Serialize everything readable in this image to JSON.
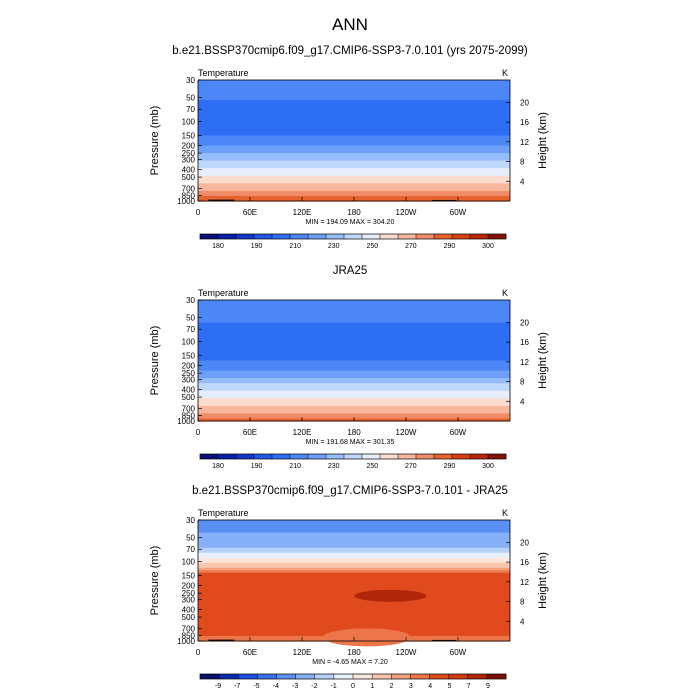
{
  "figure": {
    "title": "ANN"
  },
  "chart_data": [
    {
      "type": "heatmap",
      "title": "b.e21.BSSP370cmip6.f09_g17.CMIP6-SSP3-7.0.101 (yrs 2075-2099)",
      "variable": "Temperature",
      "units": "K",
      "ylabel": "Pressure (mb)",
      "ylabel_right": "Height (km)",
      "x_ticks": [
        "0",
        "60E",
        "120E",
        "180",
        "120W",
        "60W"
      ],
      "y_ticks": [
        "30",
        "50",
        "70",
        "100",
        "150",
        "200",
        "250",
        "300",
        "400",
        "500",
        "700",
        "850",
        "1000"
      ],
      "height_ticks": [
        "20",
        "16",
        "12",
        "8",
        "4"
      ],
      "stats": "MIN = 194.09  MAX = 304.20",
      "colorbar_labels": [
        "180",
        "190",
        "210",
        "230",
        "250",
        "270",
        "290",
        "300"
      ],
      "levels": [
        175,
        180,
        185,
        190,
        200,
        210,
        220,
        230,
        240,
        250,
        260,
        270,
        280,
        290,
        295,
        300,
        305
      ],
      "profile": [
        {
          "p": 30,
          "v": 215
        },
        {
          "p": 50,
          "v": 211
        },
        {
          "p": 70,
          "v": 207
        },
        {
          "p": 100,
          "v": 204
        },
        {
          "p": 150,
          "v": 210
        },
        {
          "p": 200,
          "v": 220
        },
        {
          "p": 250,
          "v": 229
        },
        {
          "p": 300,
          "v": 238
        },
        {
          "p": 400,
          "v": 252
        },
        {
          "p": 500,
          "v": 263
        },
        {
          "p": 700,
          "v": 278
        },
        {
          "p": 850,
          "v": 288
        },
        {
          "p": 1000,
          "v": 296
        }
      ],
      "min": 194.09,
      "max": 304.2
    },
    {
      "type": "heatmap",
      "title": "JRA25",
      "variable": "Temperature",
      "units": "K",
      "ylabel": "Pressure (mb)",
      "ylabel_right": "Height (km)",
      "x_ticks": [
        "0",
        "60E",
        "120E",
        "180",
        "120W",
        "60W"
      ],
      "y_ticks": [
        "30",
        "50",
        "70",
        "100",
        "150",
        "200",
        "250",
        "300",
        "400",
        "500",
        "700",
        "850",
        "1000"
      ],
      "height_ticks": [
        "20",
        "16",
        "12",
        "8",
        "4"
      ],
      "stats": "MIN = 191.68  MAX = 301.35",
      "colorbar_labels": [
        "180",
        "190",
        "210",
        "230",
        "250",
        "270",
        "290",
        "300"
      ],
      "levels": [
        175,
        180,
        185,
        190,
        200,
        210,
        220,
        230,
        240,
        250,
        260,
        270,
        280,
        290,
        295,
        300,
        305
      ],
      "profile": [
        {
          "p": 30,
          "v": 219
        },
        {
          "p": 50,
          "v": 212
        },
        {
          "p": 70,
          "v": 207
        },
        {
          "p": 100,
          "v": 203
        },
        {
          "p": 150,
          "v": 207
        },
        {
          "p": 200,
          "v": 215
        },
        {
          "p": 250,
          "v": 224
        },
        {
          "p": 300,
          "v": 233
        },
        {
          "p": 400,
          "v": 248
        },
        {
          "p": 500,
          "v": 259
        },
        {
          "p": 700,
          "v": 274
        },
        {
          "p": 850,
          "v": 284
        },
        {
          "p": 1000,
          "v": 292
        }
      ],
      "min": 191.68,
      "max": 301.35
    },
    {
      "type": "heatmap",
      "title": "b.e21.BSSP370cmip6.f09_g17.CMIP6-SSP3-7.0.101 - JRA25",
      "variable": "Temperature",
      "units": "K",
      "ylabel": "Pressure (mb)",
      "ylabel_right": "Height (km)",
      "x_ticks": [
        "0",
        "60E",
        "120E",
        "180",
        "120W",
        "60W"
      ],
      "y_ticks": [
        "30",
        "50",
        "70",
        "100",
        "150",
        "200",
        "250",
        "300",
        "400",
        "500",
        "700",
        "850",
        "1000"
      ],
      "height_ticks": [
        "20",
        "16",
        "12",
        "8",
        "4"
      ],
      "stats": "MIN =  -4.65  MAX =   7.20",
      "colorbar_labels": [
        "-9",
        "-7",
        "-5",
        "-4",
        "-3",
        "-2",
        "-1",
        "0",
        "1",
        "2",
        "3",
        "4",
        "5",
        "7",
        "9"
      ],
      "levels": [
        -10,
        -9,
        -7,
        -5,
        -4,
        -3,
        -2,
        -1,
        0,
        1,
        2,
        3,
        4,
        5,
        7,
        9,
        10
      ],
      "profile": [
        {
          "p": 30,
          "v": -3.5
        },
        {
          "p": 50,
          "v": -2.8
        },
        {
          "p": 70,
          "v": -1.8
        },
        {
          "p": 100,
          "v": 0.5
        },
        {
          "p": 150,
          "v": 4.6
        },
        {
          "p": 200,
          "v": 4.8
        },
        {
          "p": 250,
          "v": 4.8
        },
        {
          "p": 300,
          "v": 4.6
        },
        {
          "p": 400,
          "v": 4.6
        },
        {
          "p": 500,
          "v": 4.4
        },
        {
          "p": 700,
          "v": 4.2
        },
        {
          "p": 850,
          "v": 4.0
        },
        {
          "p": 1000,
          "v": 3.8
        }
      ],
      "min": -4.65,
      "max": 7.2
    }
  ],
  "colors": {
    "absolute": [
      "#08107a",
      "#0a1fa8",
      "#1536cc",
      "#2357e8",
      "#2e6ef5",
      "#4d87f7",
      "#6fa0f9",
      "#97bdfb",
      "#c1d8fd",
      "#e6eefc",
      "#fbdccf",
      "#f8b79d",
      "#f08c69",
      "#e8622f",
      "#da3f12",
      "#b9280a",
      "#821408"
    ],
    "difference": [
      "#071268",
      "#0b2ab0",
      "#1d4fe0",
      "#3870f0",
      "#5a90f4",
      "#86b1f8",
      "#b4d2fc",
      "#e8f2fe",
      "#fde7dc",
      "#f9c6ad",
      "#f4a07c",
      "#ec7549",
      "#e04a1c",
      "#d23a0f",
      "#b12608",
      "#7a1106"
    ]
  }
}
